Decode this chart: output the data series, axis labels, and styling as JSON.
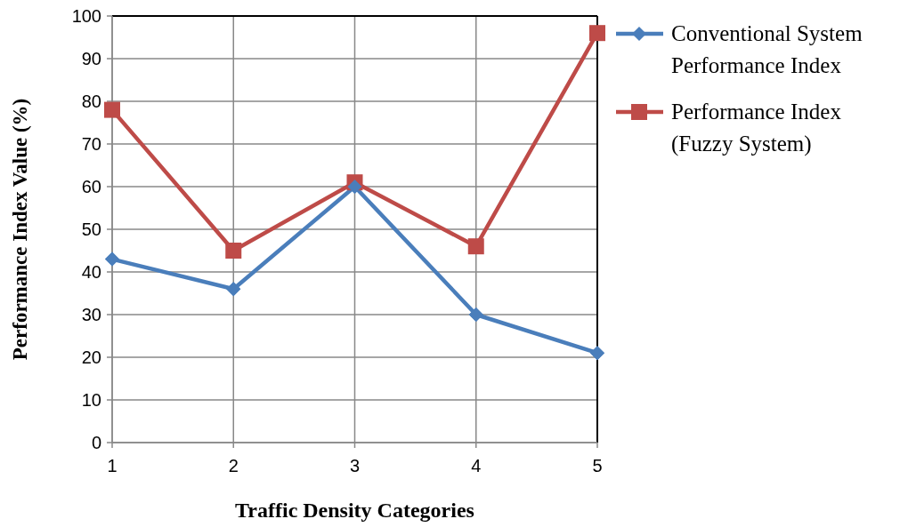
{
  "chart_data": {
    "type": "line",
    "xlabel": "Traffic Density Categories",
    "ylabel": "Performance Index Value (%)",
    "categories": [
      "1",
      "2",
      "3",
      "4",
      "5"
    ],
    "series": [
      {
        "name": "Conventional System Performance Index",
        "color": "#4a7ebb",
        "marker": "diamond",
        "values": [
          43,
          36,
          60,
          30,
          21
        ]
      },
      {
        "name": "Performance Index (Fuzzy System)",
        "color": "#be4b48",
        "marker": "square",
        "values": [
          78,
          45,
          61,
          46,
          96
        ]
      }
    ],
    "ylim": [
      0,
      100
    ],
    "yticks": [
      0,
      10,
      20,
      30,
      40,
      50,
      60,
      70,
      80,
      90,
      100
    ],
    "grid": true,
    "legend": "top right",
    "line_style": "solid"
  }
}
